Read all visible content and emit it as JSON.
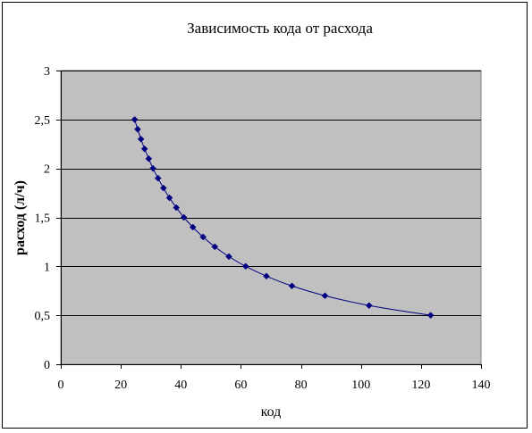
{
  "chart_data": {
    "type": "scatter",
    "title": "Зависимость кода от расхода",
    "xlabel": "код",
    "ylabel": "расход (л/ч)",
    "xlim": [
      0,
      140
    ],
    "ylim": [
      0,
      3
    ],
    "x_ticks": [
      0,
      20,
      40,
      60,
      80,
      100,
      120,
      140
    ],
    "y_ticks": [
      0,
      0.5,
      1,
      1.5,
      2,
      2.5,
      3
    ],
    "x_tick_labels": [
      "0",
      "20",
      "40",
      "60",
      "80",
      "100",
      "120",
      "140"
    ],
    "y_tick_labels": [
      "0",
      "0,5",
      "1",
      "1,5",
      "2",
      "2,5",
      "3"
    ],
    "grid": "horizontal",
    "legend": "none",
    "series": [
      {
        "marker": "diamond",
        "line": "smooth",
        "color": "#000080",
        "points": [
          {
            "x": 24.6,
            "y": 2.5
          },
          {
            "x": 25.6,
            "y": 2.4
          },
          {
            "x": 26.7,
            "y": 2.3
          },
          {
            "x": 27.9,
            "y": 2.2
          },
          {
            "x": 29.3,
            "y": 2.1
          },
          {
            "x": 30.7,
            "y": 2.0
          },
          {
            "x": 32.4,
            "y": 1.9
          },
          {
            "x": 34.2,
            "y": 1.8
          },
          {
            "x": 36.2,
            "y": 1.7
          },
          {
            "x": 38.5,
            "y": 1.6
          },
          {
            "x": 41.0,
            "y": 1.5
          },
          {
            "x": 44.0,
            "y": 1.4
          },
          {
            "x": 47.4,
            "y": 1.3
          },
          {
            "x": 51.3,
            "y": 1.2
          },
          {
            "x": 56.0,
            "y": 1.1
          },
          {
            "x": 61.6,
            "y": 1.0
          },
          {
            "x": 68.5,
            "y": 0.9
          },
          {
            "x": 77.0,
            "y": 0.8
          },
          {
            "x": 88.0,
            "y": 0.7
          },
          {
            "x": 102.7,
            "y": 0.6
          },
          {
            "x": 123.2,
            "y": 0.5
          }
        ]
      }
    ]
  },
  "colors": {
    "plot_background": "#c0c0c0",
    "series": "#000080",
    "gridline": "#000000"
  }
}
